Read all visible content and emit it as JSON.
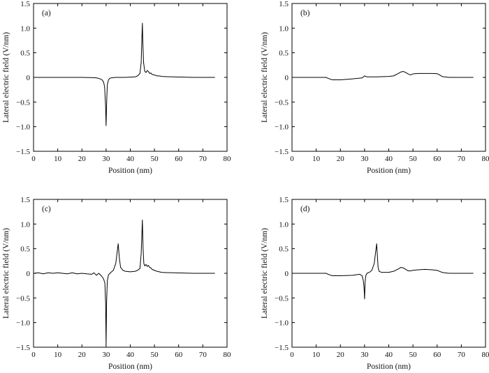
{
  "chart_data": [
    {
      "type": "line",
      "panel_label": "(a)",
      "xlabel": "Position (nm)",
      "ylabel": "Lateral electric field (V/nm)",
      "xlim": [
        0,
        80
      ],
      "ylim": [
        -1.5,
        1.5
      ],
      "x_ticks": [
        "0",
        "10",
        "20",
        "30",
        "40",
        "50",
        "60",
        "70",
        "80"
      ],
      "y_ticks": [
        "1.5",
        "1.0",
        "0.5",
        "0",
        "−0.5",
        "−1.0",
        "−1.5"
      ],
      "series": [
        {
          "x": [
            0,
            5,
            10,
            15,
            20,
            25,
            26,
            27,
            28,
            28.5,
            29,
            29.4,
            29.8,
            30,
            30.2,
            30.5,
            31,
            31.5,
            32,
            34,
            36,
            38,
            40,
            42,
            43,
            44,
            44.5,
            44.8,
            45,
            45.2,
            45.5,
            46,
            46.5,
            47,
            47.5,
            48,
            48.5,
            49,
            50,
            51,
            52,
            53,
            55,
            58,
            62,
            66,
            70,
            75
          ],
          "y": [
            0,
            0,
            0,
            0,
            0,
            -0.005,
            -0.01,
            -0.02,
            -0.04,
            -0.06,
            -0.1,
            -0.2,
            -0.6,
            -0.98,
            -0.55,
            -0.15,
            -0.05,
            -0.02,
            -0.01,
            0,
            0,
            0,
            0.005,
            0.01,
            0.03,
            0.08,
            0.3,
            0.8,
            1.1,
            0.7,
            0.3,
            0.12,
            0.1,
            0.14,
            0.12,
            0.08,
            0.09,
            0.06,
            0.05,
            0.03,
            0.03,
            0.02,
            0.015,
            0.01,
            0.005,
            0,
            0,
            0
          ]
        }
      ]
    },
    {
      "type": "line",
      "panel_label": "(b)",
      "xlabel": "Position (nm)",
      "ylabel": "Lateral electric field (V/nm)",
      "xlim": [
        0,
        80
      ],
      "ylim": [
        -1.5,
        1.5
      ],
      "x_ticks": [
        "0",
        "10",
        "20",
        "30",
        "40",
        "50",
        "60",
        "70",
        "80"
      ],
      "y_ticks": [
        "1.5",
        "1.0",
        "0.5",
        "0",
        "−0.5",
        "−1.0",
        "−1.5"
      ],
      "series": [
        {
          "x": [
            0,
            10,
            14,
            15,
            16,
            17,
            20,
            25,
            29,
            30,
            31,
            35,
            40,
            42,
            44,
            45,
            46,
            47,
            48,
            49,
            50,
            52,
            55,
            58,
            60,
            61,
            62,
            63,
            65,
            70,
            75
          ],
          "y": [
            0,
            0,
            0,
            -0.02,
            -0.04,
            -0.05,
            -0.05,
            -0.03,
            -0.01,
            0.03,
            0.01,
            0.01,
            0.02,
            0.03,
            0.08,
            0.11,
            0.12,
            0.1,
            0.07,
            0.05,
            0.07,
            0.08,
            0.08,
            0.08,
            0.075,
            0.05,
            0.02,
            0.01,
            0,
            0,
            0
          ]
        }
      ]
    },
    {
      "type": "line",
      "panel_label": "(c)",
      "xlabel": "Position (nm)",
      "ylabel": "Lateral electric field (V/nm)",
      "xlim": [
        0,
        80
      ],
      "ylim": [
        -1.5,
        1.5
      ],
      "x_ticks": [
        "0",
        "10",
        "20",
        "30",
        "40",
        "50",
        "60",
        "70",
        "80"
      ],
      "y_ticks": [
        "1.5",
        "1.0",
        "0.5",
        "0",
        "−0.5",
        "−1.0",
        "−1.5"
      ],
      "series": [
        {
          "x": [
            0,
            2,
            4,
            6,
            8,
            10,
            12,
            14,
            16,
            18,
            20,
            22,
            24,
            25,
            26,
            27,
            28,
            28.5,
            29,
            29.5,
            29.8,
            30,
            30.2,
            30.5,
            31,
            32,
            33,
            34,
            34.5,
            35,
            35.5,
            36,
            37,
            38,
            40,
            42,
            43,
            44,
            44.5,
            44.8,
            45,
            45.3,
            45.6,
            46,
            46.5,
            47,
            47.5,
            48,
            48.5,
            49,
            50,
            51,
            52,
            53,
            55,
            58,
            62,
            66,
            70,
            75
          ],
          "y": [
            0,
            0.01,
            -0.01,
            0.01,
            0,
            0.01,
            0,
            -0.01,
            0.01,
            -0.01,
            0,
            -0.01,
            -0.02,
            0.01,
            -0.04,
            0,
            -0.05,
            -0.08,
            -0.12,
            -0.2,
            -0.6,
            -1.45,
            -0.6,
            -0.15,
            -0.03,
            0.02,
            0.06,
            0.2,
            0.4,
            0.6,
            0.3,
            0.12,
            0.06,
            0.04,
            0.03,
            0.04,
            0.06,
            0.1,
            0.4,
            0.8,
            1.08,
            0.5,
            0.2,
            0.15,
            0.18,
            0.14,
            0.16,
            0.12,
            0.11,
            0.08,
            0.06,
            0.04,
            0.03,
            0.02,
            0.015,
            0.01,
            0.005,
            0,
            0,
            0
          ]
        }
      ]
    },
    {
      "type": "line",
      "panel_label": "(d)",
      "xlabel": "Position (nm)",
      "ylabel": "Lateral electric field (V/nm)",
      "xlim": [
        0,
        80
      ],
      "ylim": [
        -1.5,
        1.5
      ],
      "x_ticks": [
        "0",
        "10",
        "20",
        "30",
        "40",
        "50",
        "60",
        "70",
        "80"
      ],
      "y_ticks": [
        "1.5",
        "1.0",
        "0.5",
        "0",
        "−0.5",
        "−1.0",
        "−1.5"
      ],
      "series": [
        {
          "x": [
            0,
            10,
            14,
            15,
            16,
            17,
            20,
            25,
            28,
            29,
            29.5,
            29.8,
            30,
            30.2,
            30.5,
            31,
            32,
            33,
            34,
            34.5,
            35,
            35.3,
            35.6,
            36,
            37,
            40,
            42,
            44,
            45,
            46,
            47,
            48,
            49,
            50,
            52,
            55,
            58,
            60,
            61,
            62,
            63,
            65,
            70,
            75
          ],
          "y": [
            0,
            0,
            0,
            -0.02,
            -0.04,
            -0.05,
            -0.05,
            -0.04,
            -0.02,
            -0.05,
            -0.15,
            -0.3,
            -0.52,
            -0.2,
            -0.05,
            0,
            0.02,
            0.06,
            0.2,
            0.4,
            0.6,
            0.35,
            0.12,
            0.04,
            0.02,
            0.02,
            0.04,
            0.09,
            0.12,
            0.11,
            0.08,
            0.05,
            0.05,
            0.06,
            0.07,
            0.08,
            0.07,
            0.06,
            0.04,
            0.02,
            0.01,
            0,
            0,
            0
          ]
        }
      ]
    }
  ]
}
